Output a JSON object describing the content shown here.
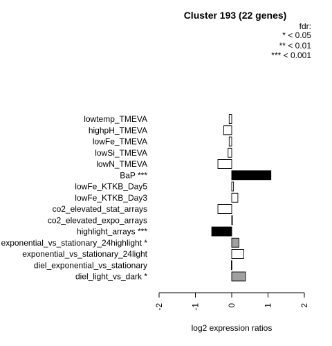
{
  "chart_data": {
    "type": "bar",
    "orientation": "horizontal",
    "title": "Cluster 193 (22 genes)",
    "legend": {
      "title": "fdr:",
      "entries": [
        "* < 0.05",
        "** < 0.01",
        "*** < 0.001"
      ],
      "placement": "top-right"
    },
    "xlabel": "log2 expression ratios",
    "xlim": [
      -2,
      2
    ],
    "xticks": [
      "-2",
      "-1",
      "0",
      "1",
      "2"
    ],
    "xtick_values": [
      -2,
      -1,
      0,
      1,
      2
    ],
    "categories": [
      "lowtemp_TMEVA",
      "highpH_TMEVA",
      "lowFe_TMEVA",
      "lowSi_TMEVA",
      "lowN_TMEVA",
      "BaP ***",
      "lowFe_KTKB_Day5",
      "lowFe_KTKB_Day3",
      "co2_elevated_stat_arrays",
      "co2_elevated_expo_arrays",
      "highlight_arrays ***",
      "exponential_vs_stationary_24highlight *",
      "exponential_vs_stationary_24light",
      "diel_exponential_vs_stationary",
      "diel_light_vs_dark *"
    ],
    "values": [
      -0.07,
      -0.22,
      -0.07,
      -0.1,
      -0.38,
      1.08,
      0.05,
      0.17,
      -0.38,
      0.02,
      -0.55,
      0.2,
      0.33,
      -0.01,
      0.38
    ],
    "colors": [
      "#ffffff",
      "#ffffff",
      "#ffffff",
      "#ffffff",
      "#ffffff",
      "#000000",
      "#ffffff",
      "#ffffff",
      "#ffffff",
      "#ffffff",
      "#000000",
      "#a0a0a0",
      "#ffffff",
      "#ffffff",
      "#a0a0a0"
    ]
  }
}
